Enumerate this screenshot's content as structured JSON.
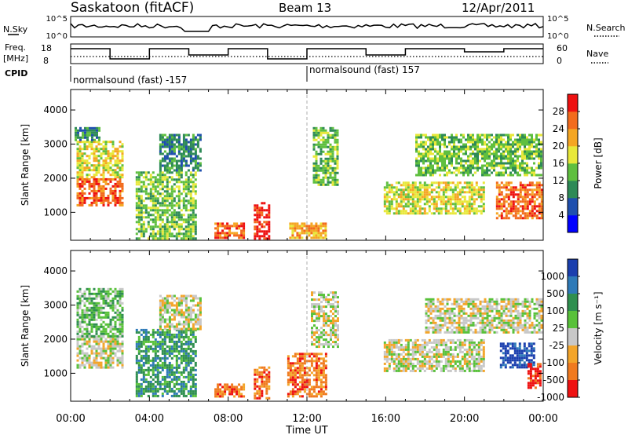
{
  "header": {
    "station": "Saskatoon (fitACF)",
    "beam": "Beam 13",
    "date": "12/Apr/2011"
  },
  "aux_panels": {
    "nsky_label": "N.Sky",
    "nsky_ticks": [
      "10^5",
      "10^0"
    ],
    "nsearch_label": "N.Search",
    "nsearch_ticks": [
      "10^5",
      "10^0"
    ],
    "freq_label_1": "Freq.",
    "freq_label_2": "[MHz]",
    "freq_ticks": [
      "18",
      "8"
    ],
    "nave_label": "Nave",
    "nave_ticks": [
      "60",
      "0"
    ],
    "cpid_label": "CPID",
    "cpid_segments": [
      {
        "text": "normalsound (fast) -157",
        "start_hour": 0
      },
      {
        "text": "normalsound (fast) 157",
        "start_hour": 12
      }
    ]
  },
  "colors": {
    "power": [
      "#0000ff",
      "#1f4fae",
      "#2e8a57",
      "#5fbf3f",
      "#e8e83a",
      "#f5a623",
      "#f26b1d",
      "#ee1111"
    ],
    "velocity": [
      "#1b3fae",
      "#2e7ab8",
      "#2f8f4f",
      "#58c13a",
      "#c8c8c8",
      "#f3a52a",
      "#f07a1f",
      "#ee1111"
    ],
    "ground_scatter": "#bebebe"
  },
  "chart_data": [
    {
      "type": "heatmap",
      "panel": "power",
      "xlabel": "",
      "ylabel": "Slant Range [km]",
      "x_ticks": [
        "00:00",
        "04:00",
        "08:00",
        "12:00",
        "16:00",
        "20:00",
        "00:00"
      ],
      "y_ticks": [
        "1000",
        "2000",
        "3000",
        "4000"
      ],
      "xlim_hours": [
        0,
        24
      ],
      "ylim_km": [
        180,
        4600
      ],
      "colorbar_label": "Power [dB]",
      "colorbar_ticks": [
        "4",
        "8",
        "12",
        "16",
        "20",
        "24",
        "28"
      ],
      "colorbar_range": [
        0,
        30
      ],
      "regions": [
        {
          "t0": 0.3,
          "t1": 2.6,
          "r0": 1200,
          "r1": 2000,
          "level": 6
        },
        {
          "t0": 0.3,
          "t1": 2.6,
          "r0": 2000,
          "r1": 3100,
          "level": 4
        },
        {
          "t0": 0.2,
          "t1": 1.5,
          "r0": 3100,
          "r1": 3500,
          "level": 2
        },
        {
          "t0": 3.3,
          "t1": 6.3,
          "r0": 250,
          "r1": 2200,
          "level": 3
        },
        {
          "t0": 4.5,
          "t1": 6.6,
          "r0": 2200,
          "r1": 3300,
          "level": 2
        },
        {
          "t0": 7.3,
          "t1": 8.8,
          "r0": 250,
          "r1": 700,
          "level": 6
        },
        {
          "t0": 9.3,
          "t1": 10.1,
          "r0": 250,
          "r1": 1300,
          "level": 7
        },
        {
          "t0": 11.1,
          "t1": 13.0,
          "r0": 250,
          "r1": 700,
          "level": 5
        },
        {
          "t0": 12.3,
          "t1": 13.6,
          "r0": 1800,
          "r1": 3500,
          "level": 3
        },
        {
          "t0": 15.9,
          "t1": 21.0,
          "r0": 1000,
          "r1": 1900,
          "level": 4
        },
        {
          "t0": 17.5,
          "t1": 23.9,
          "r0": 2100,
          "r1": 3300,
          "level": 3
        },
        {
          "t0": 21.6,
          "t1": 23.9,
          "r0": 800,
          "r1": 1900,
          "level": 6
        }
      ]
    },
    {
      "type": "heatmap",
      "panel": "velocity",
      "xlabel": "Time UT",
      "ylabel": "Slant Range [km]",
      "x_ticks": [
        "00:00",
        "04:00",
        "08:00",
        "12:00",
        "16:00",
        "20:00",
        "00:00"
      ],
      "y_ticks": [
        "1000",
        "2000",
        "3000",
        "4000"
      ],
      "xlim_hours": [
        0,
        24
      ],
      "ylim_km": [
        180,
        4600
      ],
      "colorbar_label": "Velocity [m s⁻¹]",
      "colorbar_ticks": [
        "1000",
        "500",
        "100",
        "25",
        "-25",
        "-100",
        "-500",
        "-1000"
      ],
      "colorbar_range": [
        -1000,
        1000
      ],
      "regions": [
        {
          "t0": 0.3,
          "t1": 2.6,
          "r0": 1200,
          "r1": 2100,
          "level": 4
        },
        {
          "t0": 0.3,
          "t1": 2.6,
          "r0": 2100,
          "r1": 3500,
          "level": 3
        },
        {
          "t0": 3.3,
          "t1": 6.3,
          "r0": 300,
          "r1": 2300,
          "level": 2
        },
        {
          "t0": 4.5,
          "t1": 6.6,
          "r0": 2300,
          "r1": 3300,
          "level": 4
        },
        {
          "t0": 7.3,
          "t1": 8.8,
          "r0": 300,
          "r1": 700,
          "level": 6
        },
        {
          "t0": 9.3,
          "t1": 10.1,
          "r0": 300,
          "r1": 1200,
          "level": 6
        },
        {
          "t0": 11.0,
          "t1": 13.0,
          "r0": 300,
          "r1": 1600,
          "level": 6
        },
        {
          "t0": 12.2,
          "t1": 13.6,
          "r0": 1800,
          "r1": 3400,
          "level": 4
        },
        {
          "t0": 15.9,
          "t1": 21.0,
          "r0": 1100,
          "r1": 2000,
          "level": 4
        },
        {
          "t0": 18.0,
          "t1": 23.9,
          "r0": 2200,
          "r1": 3200,
          "level": 4
        },
        {
          "t0": 21.8,
          "t1": 23.5,
          "r0": 1200,
          "r1": 1900,
          "level": 0
        },
        {
          "t0": 23.2,
          "t1": 23.9,
          "r0": 600,
          "r1": 1300,
          "level": 7
        }
      ]
    }
  ]
}
